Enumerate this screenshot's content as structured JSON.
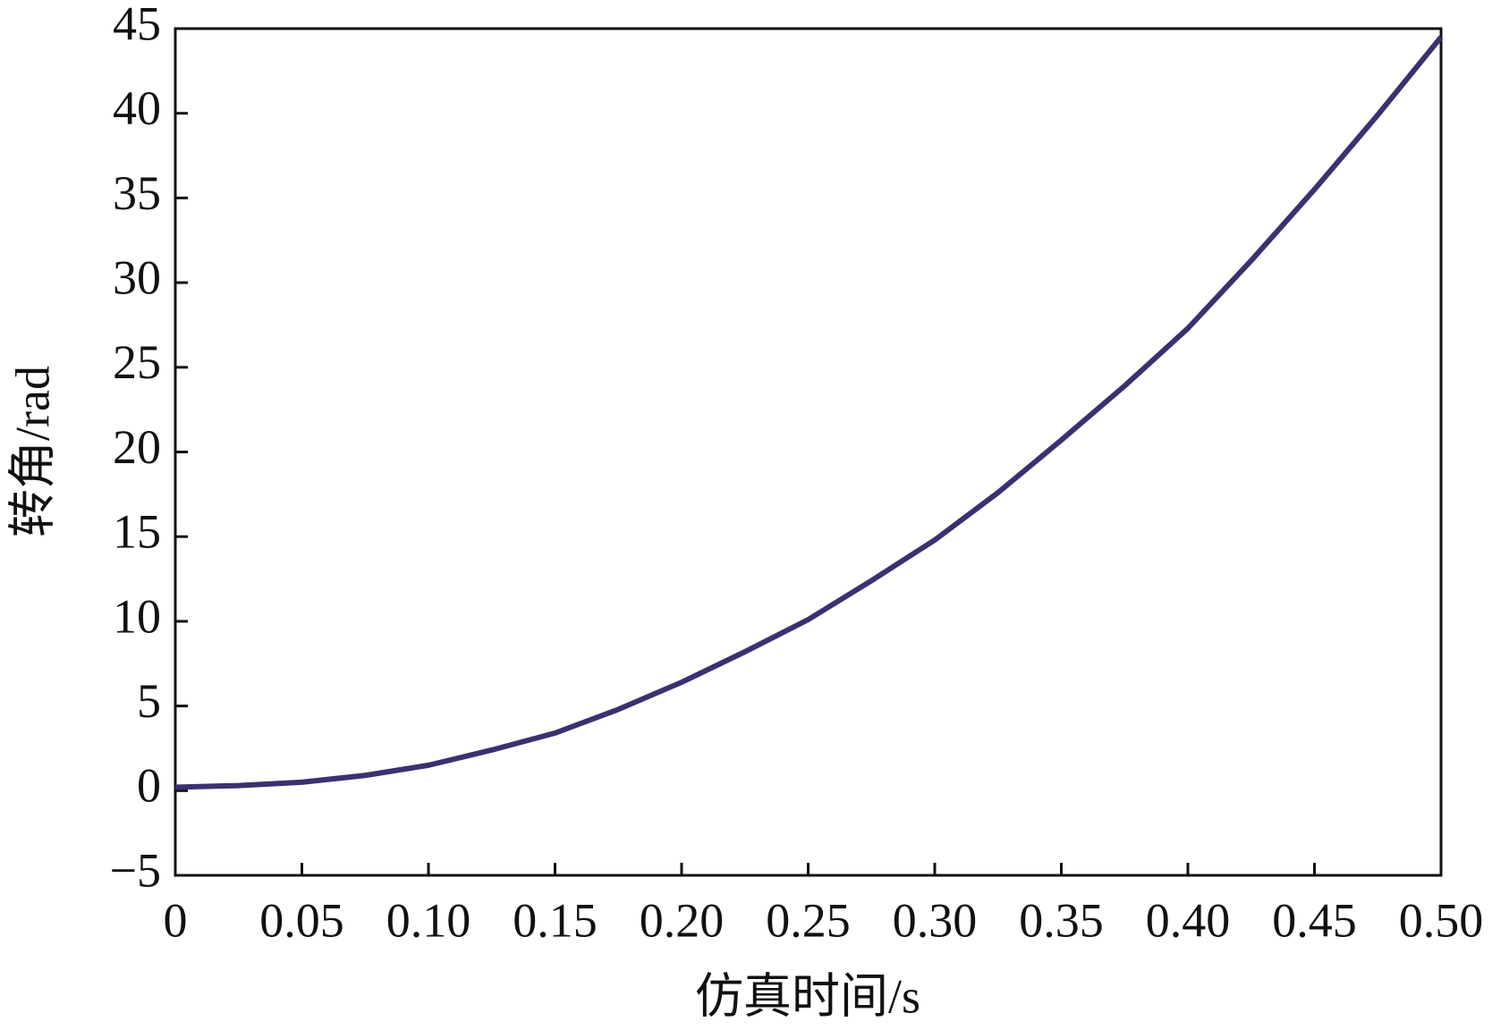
{
  "chart_data": {
    "type": "line",
    "xlabel": "仿真时间/s",
    "ylabel": "转角/rad",
    "x": [
      0,
      0.025,
      0.05,
      0.075,
      0.1,
      0.125,
      0.15,
      0.175,
      0.2,
      0.225,
      0.25,
      0.275,
      0.3,
      0.325,
      0.35,
      0.375,
      0.4,
      0.425,
      0.45,
      0.475,
      0.5
    ],
    "series": [
      {
        "color": "#3a3170",
        "values": [
          0.2,
          0.3,
          0.5,
          0.9,
          1.5,
          2.4,
          3.4,
          4.8,
          6.4,
          8.2,
          10.1,
          12.4,
          14.8,
          17.6,
          20.7,
          23.9,
          27.3,
          31.3,
          35.5,
          39.9,
          44.5
        ]
      }
    ],
    "xlim": [
      0,
      0.5
    ],
    "ylim": [
      -5,
      45
    ],
    "xticks": [
      0,
      0.05,
      {
        "value": 0.1,
        "label": "0.10"
      },
      0.15,
      {
        "value": 0.2,
        "label": "0.20"
      },
      0.25,
      {
        "value": 0.3,
        "label": "0.30"
      },
      0.35,
      {
        "value": 0.4,
        "label": "0.40"
      },
      0.45,
      {
        "value": 0.5,
        "label": "0.50"
      }
    ],
    "yticks": [
      {
        "value": -5,
        "label": "−5"
      },
      0,
      5,
      10,
      15,
      20,
      25,
      30,
      35,
      40,
      45
    ],
    "grid": false
  }
}
